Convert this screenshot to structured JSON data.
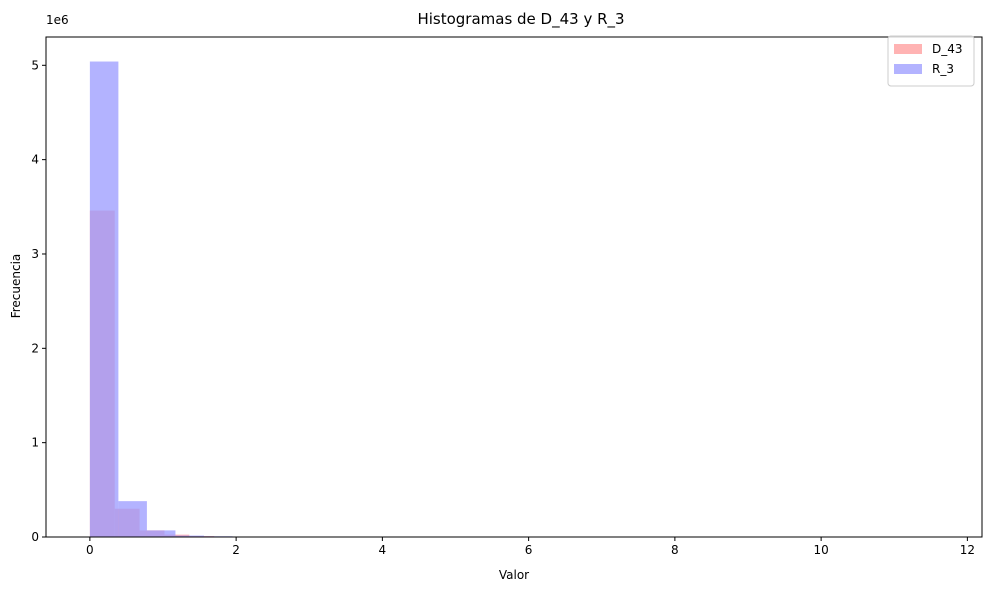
{
  "chart_data": {
    "type": "bar",
    "title": "Histogramas de D_43 y R_3",
    "xlabel": "Valor",
    "ylabel": "Frecuencia",
    "y_offset_label": "1e6",
    "xlim": [
      -0.6,
      12.2
    ],
    "ylim": [
      0,
      5300000
    ],
    "xticks": [
      0,
      2,
      4,
      6,
      8,
      10,
      12
    ],
    "xtick_labels": [
      "0",
      "2",
      "4",
      "6",
      "8",
      "10",
      "12"
    ],
    "yticks": [
      0,
      1000000,
      2000000,
      3000000,
      4000000,
      5000000
    ],
    "ytick_labels": [
      "0",
      "1",
      "2",
      "3",
      "4",
      "5"
    ],
    "legend_position": "top-right",
    "grid": false,
    "series": [
      {
        "name": "D_43",
        "color": "#ff9999",
        "bins": [
          {
            "x0": 0.0,
            "x1": 0.34,
            "value": 3460000
          },
          {
            "x0": 0.34,
            "x1": 0.68,
            "value": 300000
          },
          {
            "x0": 0.68,
            "x1": 1.02,
            "value": 70000
          },
          {
            "x0": 1.02,
            "x1": 1.36,
            "value": 25000
          },
          {
            "x0": 1.36,
            "x1": 1.7,
            "value": 10000
          },
          {
            "x0": 1.7,
            "x1": 2.04,
            "value": 5000
          }
        ]
      },
      {
        "name": "R_3",
        "color": "#9999ff",
        "bins": [
          {
            "x0": 0.0,
            "x1": 0.39,
            "value": 5040000
          },
          {
            "x0": 0.39,
            "x1": 0.78,
            "value": 380000
          },
          {
            "x0": 0.78,
            "x1": 1.17,
            "value": 70000
          },
          {
            "x0": 1.17,
            "x1": 1.56,
            "value": 15000
          },
          {
            "x0": 1.56,
            "x1": 1.95,
            "value": 8000
          },
          {
            "x0": 1.95,
            "x1": 2.34,
            "value": 4000
          }
        ]
      }
    ]
  }
}
